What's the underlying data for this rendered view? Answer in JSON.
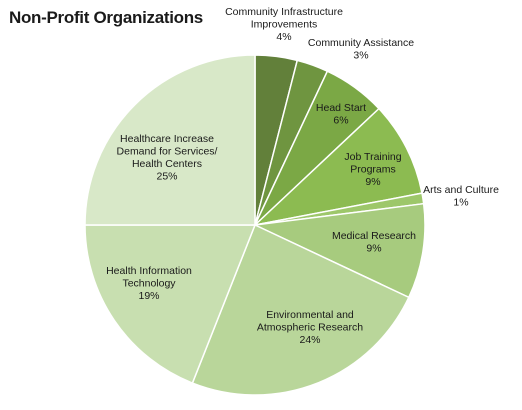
{
  "chart_data": {
    "type": "pie",
    "title": "Non-Profit Organizations",
    "slices": [
      {
        "lines": [
          "Community Infrastructure",
          "Improvements"
        ],
        "value": 4,
        "value_label": "4%",
        "color": "#62803a"
      },
      {
        "lines": [
          "Community Assistance"
        ],
        "value": 3,
        "value_label": "3%",
        "color": "#6f9540"
      },
      {
        "lines": [
          "Head Start"
        ],
        "value": 6,
        "value_label": "6%",
        "color": "#7ba845"
      },
      {
        "lines": [
          "Job Training",
          "Programs"
        ],
        "value": 9,
        "value_label": "9%",
        "color": "#8cbb51"
      },
      {
        "lines": [
          "Arts and Culture"
        ],
        "value": 1,
        "value_label": "1%",
        "color": "#9dc76a"
      },
      {
        "lines": [
          "Medical Research"
        ],
        "value": 9,
        "value_label": "9%",
        "color": "#a7cb7e"
      },
      {
        "lines": [
          "Environmental and",
          "Atmospheric Research"
        ],
        "value": 24,
        "value_label": "24%",
        "color": "#b9d69a"
      },
      {
        "lines": [
          "Health Information",
          "Technology"
        ],
        "value": 19,
        "value_label": "19%",
        "color": "#c8dfb0"
      },
      {
        "lines": [
          "Healthcare Increase",
          "Demand for  Services/",
          "Health Centers"
        ],
        "value": 25,
        "value_label": "25%",
        "color": "#d8e8c8"
      }
    ]
  }
}
